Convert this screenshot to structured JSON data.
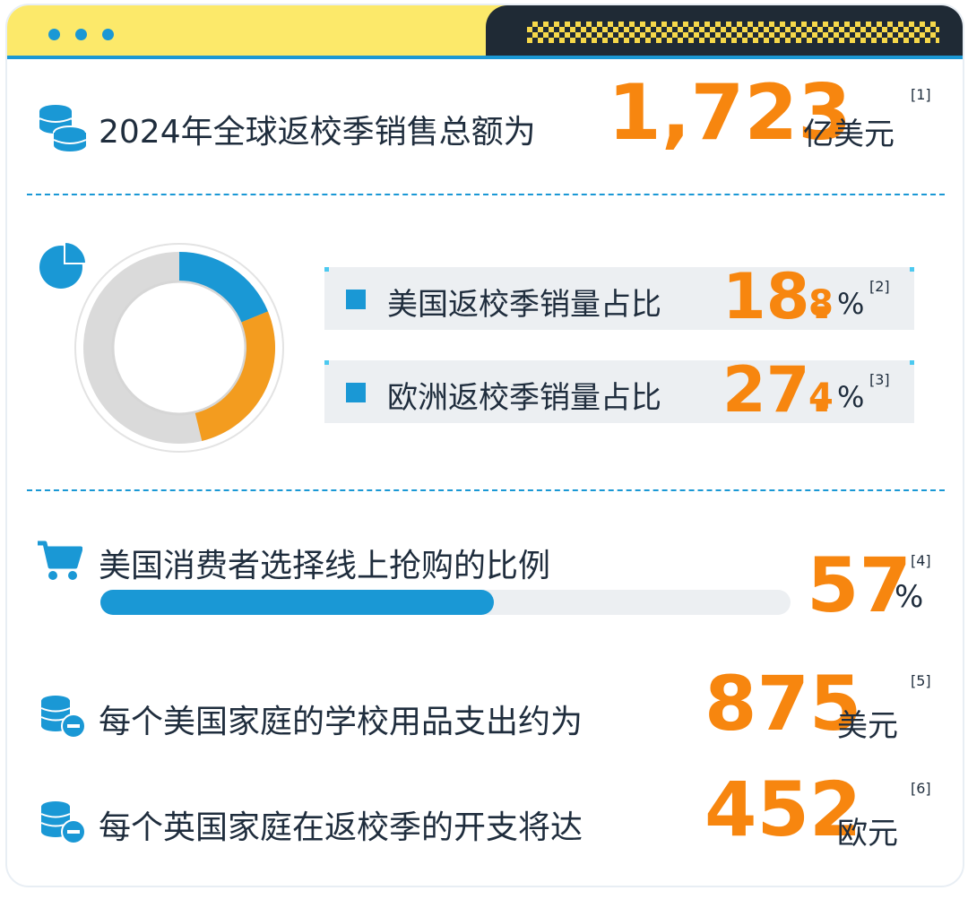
{
  "header": {
    "dots": [
      "dot",
      "dot",
      "dot"
    ]
  },
  "total": {
    "label": "2024年全球返校季销售总额为",
    "value": "1,723",
    "unit": "亿美元",
    "ref": "[1]"
  },
  "share": {
    "us": {
      "label": "美国返校季销量占比",
      "int": "18.",
      "dec": "8",
      "pct": "%",
      "ref": "[2]",
      "value": 18.8
    },
    "eu": {
      "label": "欧洲返校季销量占比",
      "int": "27.",
      "dec": "4",
      "pct": "%",
      "ref": "[3]",
      "value": 27.4
    }
  },
  "online": {
    "label": "美国消费者选择线上抢购的比例",
    "value": "57",
    "pct": "%",
    "ref": "[4]",
    "fill": 0.57
  },
  "us_household": {
    "label": "每个美国家庭的学校用品支出约为",
    "value": "875",
    "unit": "美元",
    "ref": "[5]"
  },
  "uk_household": {
    "label": "每个英国家庭在返校季的开支将达",
    "value": "452",
    "unit": "欧元",
    "ref": "[6]"
  },
  "colors": {
    "blue": "#1a98d5",
    "orange": "#f39c1f",
    "gray": "#d9d9d9",
    "accent": "#f7860f"
  },
  "icons": [
    "coins-stack-icon",
    "pie-chart-icon",
    "shopping-cart-icon",
    "coins-minus-icon",
    "coins-minus-icon"
  ],
  "chart_data": {
    "type": "pie",
    "categories": [
      "美国返校季销量占比",
      "欧洲返校季销量占比"
    ],
    "values": [
      18.8,
      27.4
    ],
    "unit": "%"
  }
}
